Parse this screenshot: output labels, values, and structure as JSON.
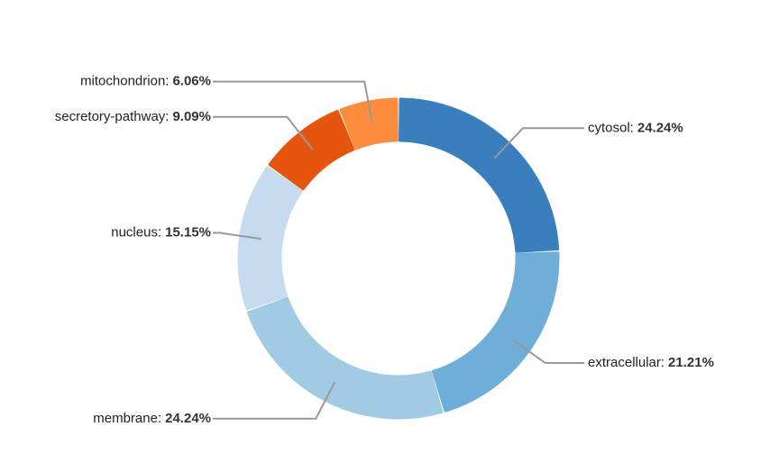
{
  "chart_data": {
    "type": "donut",
    "categories": [
      "cytosol:",
      "extracellular:",
      "membrane:",
      "nucleus:",
      "secretory-pathway:",
      "mitochondrion:"
    ],
    "values": [
      24.24,
      21.21,
      24.24,
      15.15,
      9.09,
      6.06
    ],
    "value_labels": [
      "24.24%",
      "21.21%",
      "24.24%",
      "15.15%",
      "9.09%",
      "6.06%"
    ],
    "colors": [
      "#3a7fbd",
      "#6faed9",
      "#a1cbe3",
      "#c6dbef",
      "#e6550d",
      "#fd8d3c"
    ]
  }
}
